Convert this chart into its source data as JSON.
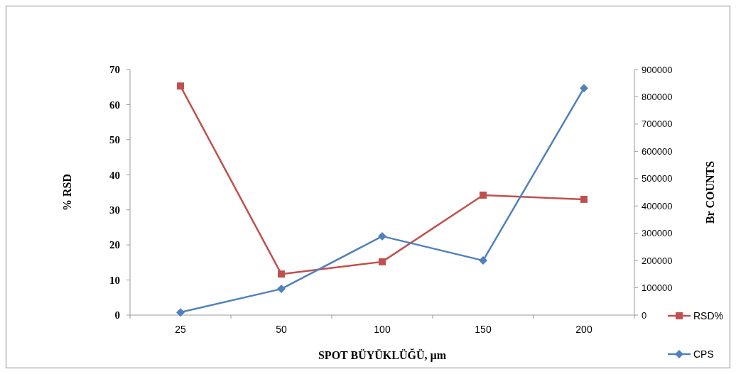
{
  "chart_data": {
    "type": "line",
    "xlabel": "SPOT BÜYÜKLÜĞÜ, µm",
    "ylabel": "% RSD",
    "y2label": "Br COUNTS",
    "categories": [
      "25",
      "50",
      "100",
      "150",
      "200"
    ],
    "series": [
      {
        "name": "RSD%",
        "color": "#c0504d",
        "marker": "square",
        "values": [
          65.3,
          11.7,
          15.2,
          34.2,
          33.0
        ]
      },
      {
        "name": "CPS",
        "color": "#4f81bd",
        "marker": "diamond",
        "axis": "y2",
        "values": [
          10000,
          96000,
          289000,
          200000,
          832000
        ]
      }
    ],
    "ylim": [
      0,
      70
    ],
    "yticks": [
      0,
      10,
      20,
      30,
      40,
      50,
      60,
      70
    ],
    "y2lim": [
      0,
      900000
    ],
    "y2ticks": [
      0,
      100000,
      200000,
      300000,
      400000,
      500000,
      600000,
      700000,
      800000,
      900000
    ],
    "legend": "bottom right",
    "grid": false
  }
}
